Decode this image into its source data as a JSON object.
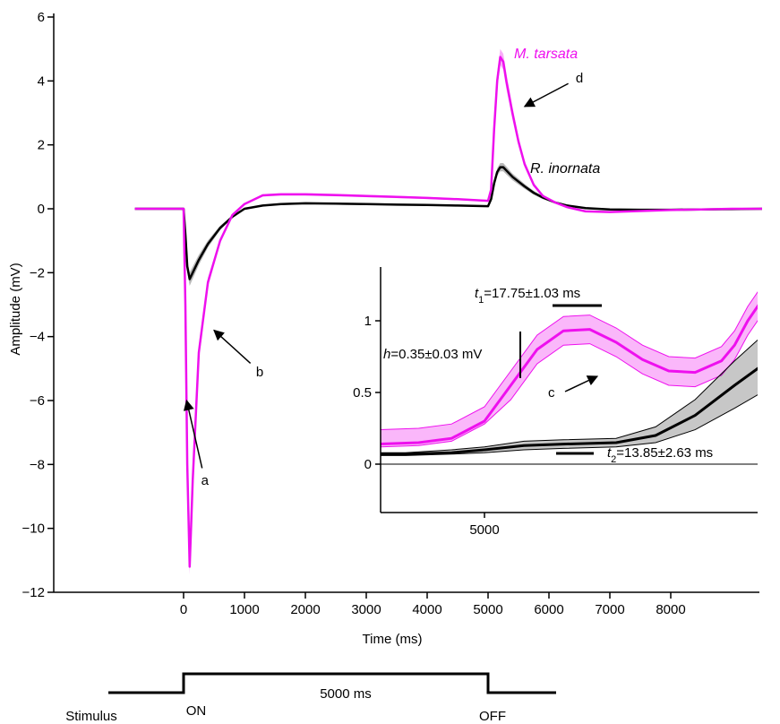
{
  "chart_data": [
    {
      "type": "line",
      "xlabel": "Time (ms)",
      "ylabel": "Amplitude (mV)",
      "xlim": [
        -800,
        9500
      ],
      "ylim": [
        -12,
        6
      ],
      "xticks": [
        0,
        1000,
        2000,
        3000,
        4000,
        5000,
        6000,
        7000,
        8000
      ],
      "yticks": [
        6,
        4,
        2,
        0,
        -2,
        -4,
        -6,
        -8,
        -10,
        -12
      ],
      "ytick_labels": [
        "6",
        "4",
        "2",
        "0",
        "−2",
        "−4",
        "−6",
        "−8",
        "−10",
        "−12"
      ],
      "series": [
        {
          "name": "M. tarsata",
          "color": "#ee10ee",
          "x": [
            -800,
            -100,
            0,
            30,
            60,
            100,
            150,
            250,
            400,
            600,
            800,
            1000,
            1300,
            1600,
            2000,
            2500,
            3000,
            3500,
            4000,
            4500,
            5000,
            5050,
            5100,
            5150,
            5200,
            5250,
            5300,
            5400,
            5500,
            5600,
            5750,
            5900,
            6100,
            6300,
            6600,
            7000,
            7500,
            8000,
            8500,
            9000,
            9500
          ],
          "y": [
            0,
            0,
            0,
            -3,
            -8,
            -11.2,
            -8.5,
            -4.5,
            -2.3,
            -1.0,
            -0.2,
            0.15,
            0.42,
            0.45,
            0.45,
            0.43,
            0.4,
            0.37,
            0.34,
            0.3,
            0.25,
            0.6,
            2.5,
            4.0,
            4.75,
            4.6,
            4.0,
            3.0,
            2.1,
            1.4,
            0.75,
            0.4,
            0.2,
            0.05,
            -0.08,
            -0.1,
            -0.07,
            -0.04,
            -0.02,
            0,
            0
          ],
          "band": 0.25
        },
        {
          "name": "R. inornata",
          "color": "#000000",
          "x": [
            -800,
            -100,
            0,
            30,
            60,
            100,
            150,
            250,
            400,
            600,
            800,
            1000,
            1300,
            1600,
            2000,
            2500,
            3000,
            3500,
            4000,
            4500,
            5000,
            5050,
            5100,
            5150,
            5200,
            5250,
            5300,
            5400,
            5500,
            5600,
            5750,
            5900,
            6100,
            6300,
            6600,
            7000,
            7500,
            8000,
            8500,
            9000,
            9500
          ],
          "y": [
            0,
            0,
            0,
            -0.8,
            -1.8,
            -2.2,
            -2.0,
            -1.6,
            -1.1,
            -0.6,
            -0.25,
            0.0,
            0.1,
            0.15,
            0.17,
            0.16,
            0.15,
            0.13,
            0.12,
            0.1,
            0.08,
            0.3,
            0.8,
            1.15,
            1.3,
            1.3,
            1.2,
            1.0,
            0.85,
            0.7,
            0.5,
            0.35,
            0.2,
            0.1,
            0.02,
            -0.02,
            -0.03,
            -0.03,
            -0.02,
            -0.01,
            0
          ],
          "band": 0.35
        }
      ],
      "annotations": [
        {
          "label": "a",
          "x": 350,
          "y": -8.5,
          "target_x": 50,
          "target_y": -6.0
        },
        {
          "label": "b",
          "x": 1250,
          "y": -5.1,
          "target_x": 500,
          "target_y": -3.8
        },
        {
          "label": "d",
          "x": 6500,
          "y": 4.1,
          "target_x": 5600,
          "target_y": 3.2
        }
      ],
      "stimulus": {
        "label": "Stimulus",
        "on_label": "ON",
        "off_label": "OFF",
        "duration_label": "5000 ms",
        "on_ms": 0,
        "off_ms": 5000
      }
    },
    {
      "type": "line",
      "title": "",
      "xticks": [
        5000
      ],
      "xlim": [
        4700,
        5300
      ],
      "ylim": [
        -0.35,
        1.35
      ],
      "yticks": [
        0,
        0.5,
        1
      ],
      "ytick_labels": [
        "0",
        "0.5",
        "1"
      ],
      "series": [
        {
          "name": "M. tarsata",
          "color": "#ee10ee",
          "x": [
            4700,
            4760,
            4800,
            4860,
            4920,
            4950,
            4975,
            5000,
            5020,
            5040,
            5060,
            5080,
            5100,
            5120,
            5140,
            5160,
            5180,
            5190,
            5200,
            5215,
            5230
          ],
          "y": [
            0.15,
            0.14,
            0.14,
            0.14,
            0.14,
            0.15,
            0.18,
            0.3,
            0.55,
            0.8,
            0.93,
            0.94,
            0.85,
            0.73,
            0.65,
            0.64,
            0.72,
            0.83,
            1.0,
            1.2,
            1.45
          ],
          "band": 0.1
        },
        {
          "name": "R. inornata",
          "color": "#000000",
          "x": [
            4700,
            4760,
            4820,
            4880,
            4940,
            4975,
            5000,
            5030,
            5060,
            5100,
            5130,
            5160,
            5190,
            5220,
            5250,
            5280,
            5300
          ],
          "y": [
            0.07,
            0.07,
            0.07,
            0.07,
            0.07,
            0.08,
            0.1,
            0.13,
            0.14,
            0.15,
            0.2,
            0.34,
            0.55,
            0.75,
            0.92,
            1.03,
            1.1
          ],
          "band_low": [
            0.06,
            0.06,
            0.06,
            0.06,
            0.06,
            0.07,
            0.08,
            0.1,
            0.11,
            0.12,
            0.15,
            0.24,
            0.39,
            0.55,
            0.69,
            0.8,
            0.85
          ],
          "band_high": [
            0.08,
            0.08,
            0.08,
            0.08,
            0.08,
            0.1,
            0.12,
            0.16,
            0.17,
            0.18,
            0.26,
            0.45,
            0.72,
            0.97,
            1.18,
            1.33,
            1.42
          ]
        }
      ],
      "annotations": [
        {
          "label": "c"
        },
        {
          "label_italic": "h",
          "text": "=0.35±0.03 mV"
        },
        {
          "label_italic": "t",
          "sub": "1",
          "text": "=17.75±1.03 ms"
        },
        {
          "label_italic": "t",
          "sub": "2",
          "text": "=13.85±2.63 ms"
        }
      ]
    }
  ]
}
